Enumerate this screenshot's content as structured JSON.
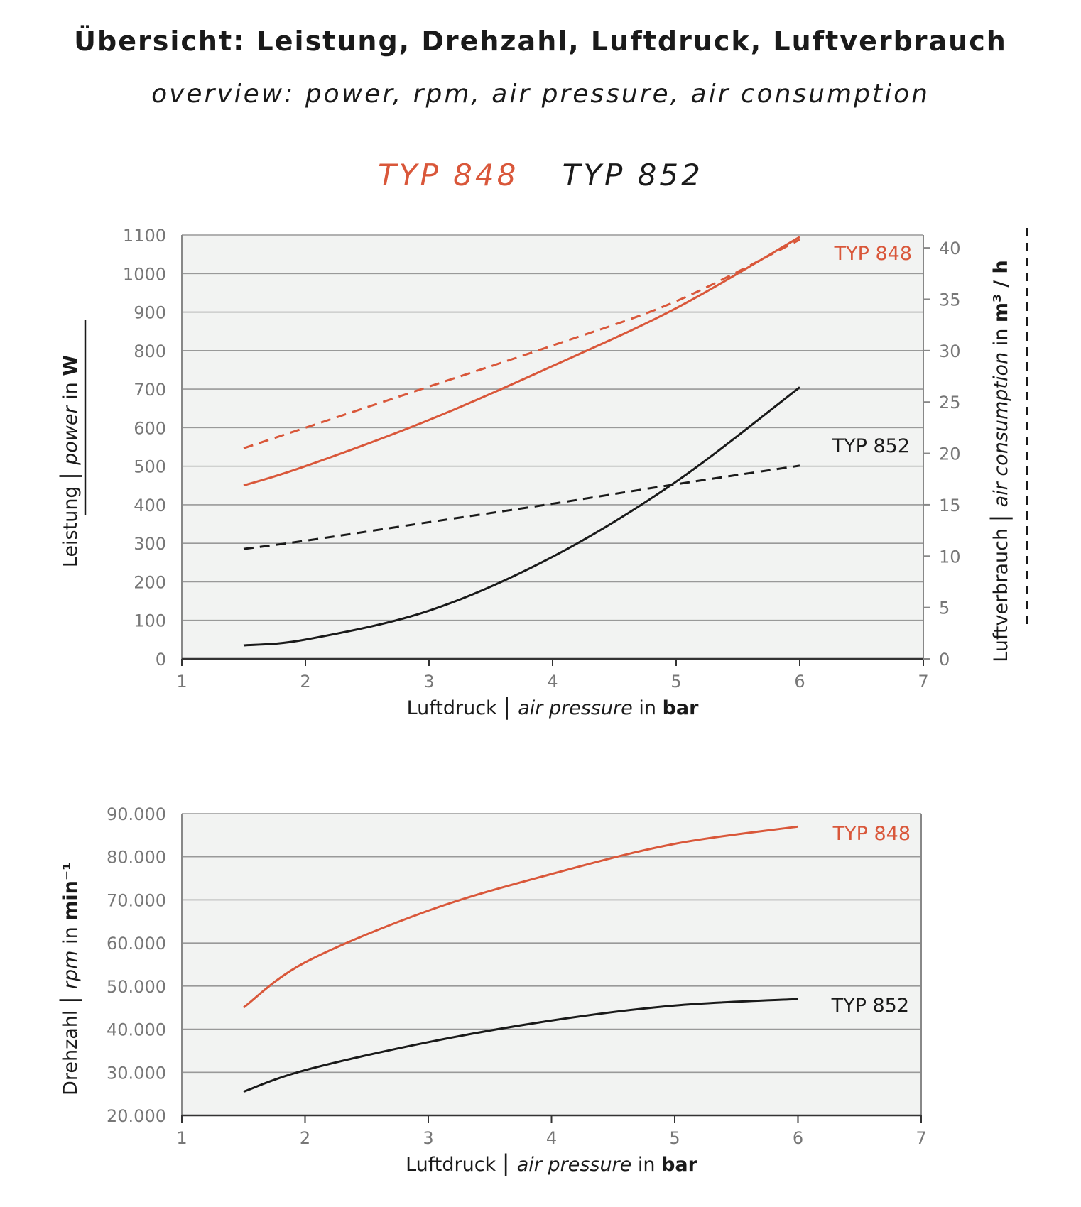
{
  "title": "Übersicht: Leistung, Drehzahl, Luftdruck, Luftverbrauch",
  "subtitle": "overview: power, rpm, air pressure, air consumption",
  "legend": [
    {
      "label": "TYP 848",
      "color": "#d9573a"
    },
    {
      "label": "TYP 852",
      "color": "#1a1a1a"
    }
  ],
  "colors": {
    "typ848": "#d9573a",
    "typ852": "#1a1a1a",
    "plot_bg": "#f2f3f2",
    "grid": "#999999"
  },
  "chart_data": [
    {
      "type": "line",
      "xlabel": {
        "de": "Luftdruck",
        "sep": "|",
        "en": "air pressure",
        "unit_prefix": "in",
        "unit": "bar"
      },
      "ylabel_left": {
        "de": "Leistung",
        "sep": "|",
        "en": "power",
        "unit_prefix": "in",
        "unit": "W"
      },
      "ylabel_right": {
        "de": "Luftverbrauch",
        "sep": "|",
        "en": "air consumption",
        "unit_prefix": "in",
        "unit": "m³ / h"
      },
      "xlim": [
        1,
        7
      ],
      "ylim": [
        0,
        1100
      ],
      "y2lim": [
        0,
        41.25
      ],
      "x_ticks": [
        "1",
        "2",
        "3",
        "4",
        "5",
        "6",
        "7"
      ],
      "y_ticks": [
        "0",
        "100",
        "200",
        "300",
        "400",
        "500",
        "600",
        "700",
        "800",
        "900",
        "1000",
        "1100"
      ],
      "y2_ticks": [
        "0",
        "5",
        "10",
        "15",
        "20",
        "25",
        "30",
        "35",
        "40"
      ],
      "grid": true,
      "series": [
        {
          "name": "TYP 848",
          "metric": "power",
          "axis": "left",
          "style": "solid",
          "color": "#d9573a",
          "x": [
            1.5,
            2,
            3,
            4,
            5,
            6
          ],
          "y": [
            450,
            500,
            620,
            760,
            910,
            1095
          ]
        },
        {
          "name": "TYP 848",
          "metric": "air consumption",
          "axis": "right",
          "style": "dashed",
          "color": "#d9573a",
          "x": [
            1.5,
            2,
            3,
            4,
            5,
            6
          ],
          "y": [
            20.5,
            22.5,
            26.5,
            30.5,
            34.8,
            40.8
          ]
        },
        {
          "name": "TYP 852",
          "metric": "power",
          "axis": "left",
          "style": "solid",
          "color": "#1a1a1a",
          "x": [
            1.5,
            2,
            3,
            4,
            5,
            6
          ],
          "y": [
            35,
            50,
            125,
            265,
            460,
            705
          ]
        },
        {
          "name": "TYP 852",
          "metric": "air consumption",
          "axis": "right",
          "style": "dashed",
          "color": "#1a1a1a",
          "x": [
            1.5,
            2,
            3,
            4,
            5,
            6
          ],
          "y": [
            10.7,
            11.5,
            13.3,
            15.1,
            17.0,
            18.8
          ]
        }
      ]
    },
    {
      "type": "line",
      "xlabel": {
        "de": "Luftdruck",
        "sep": "|",
        "en": "air pressure",
        "unit_prefix": "in",
        "unit": "bar"
      },
      "ylabel": {
        "de": "Drehzahl",
        "sep": "|",
        "en": "rpm",
        "unit_prefix": "in",
        "unit": "min⁻¹"
      },
      "xlim": [
        1,
        7
      ],
      "ylim": [
        20000,
        90000
      ],
      "x_ticks": [
        "1",
        "2",
        "3",
        "4",
        "5",
        "6",
        "7"
      ],
      "y_ticks": [
        "20.000",
        "30.000",
        "40.000",
        "50.000",
        "60.000",
        "70.000",
        "80.000",
        "90.000"
      ],
      "grid": true,
      "series": [
        {
          "name": "TYP 848",
          "metric": "rpm",
          "style": "solid",
          "color": "#d9573a",
          "x": [
            1.5,
            2,
            3,
            4,
            5,
            6
          ],
          "y": [
            45000,
            55500,
            67500,
            76000,
            83000,
            87000
          ]
        },
        {
          "name": "TYP 852",
          "metric": "rpm",
          "style": "solid",
          "color": "#1a1a1a",
          "x": [
            1.5,
            2,
            3,
            4,
            5,
            6
          ],
          "y": [
            25500,
            30500,
            37000,
            42000,
            45500,
            47000
          ]
        }
      ]
    }
  ]
}
